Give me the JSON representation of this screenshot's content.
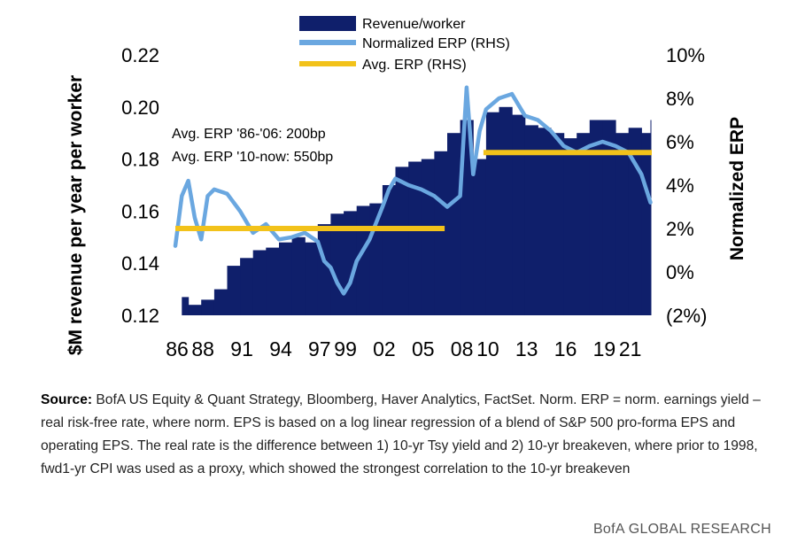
{
  "chart_data": {
    "type": "bar+line",
    "legend": [
      "Revenue/worker",
      "Normalized ERP (RHS)",
      "Avg. ERP (RHS)"
    ],
    "legend_placement": "top-center",
    "ylabel": "$M revenue per year per worker",
    "y2label": "Normalized ERP",
    "ylim": [
      0.12,
      0.22
    ],
    "y_ticks": [
      "0.12",
      "0.14",
      "0.16",
      "0.18",
      "0.20",
      "0.22"
    ],
    "y2lim": [
      -2,
      10
    ],
    "y2_ticks": [
      "(2%)",
      "0%",
      "2%",
      "4%",
      "6%",
      "8%",
      "10%"
    ],
    "xlim": [
      1986,
      2022.8
    ],
    "x_ticks": [
      "86",
      "88",
      "91",
      "94",
      "97",
      "99",
      "02",
      "05",
      "08",
      "10",
      "13",
      "16",
      "19",
      "21"
    ],
    "x_tick_years": [
      1986,
      1988,
      1991,
      1994,
      1997,
      1999,
      2002,
      2005,
      2008,
      2010,
      2013,
      2016,
      2019,
      2021
    ],
    "grid": false,
    "annotations": [
      "Avg. ERP '86-'06:  200bp",
      "Avg. ERP '10-now:  550bp"
    ],
    "series": [
      {
        "name": "Revenue/worker",
        "type": "bar",
        "axis": "left",
        "color": "#0f1f6b",
        "x": [
          1986.5,
          1987,
          1988,
          1989,
          1990,
          1991,
          1992,
          1993,
          1994,
          1995,
          1996,
          1997,
          1998,
          1999,
          2000,
          2001,
          2002,
          2003,
          2004,
          2005,
          2006,
          2007,
          2008,
          2009,
          2010,
          2011,
          2012,
          2013,
          2014,
          2015,
          2016,
          2017,
          2018,
          2019,
          2020,
          2021,
          2022,
          2022.7
        ],
        "values": [
          0.127,
          0.124,
          0.126,
          0.13,
          0.139,
          0.142,
          0.145,
          0.146,
          0.148,
          0.15,
          0.148,
          0.155,
          0.159,
          0.16,
          0.162,
          0.163,
          0.17,
          0.177,
          0.179,
          0.18,
          0.183,
          0.19,
          0.195,
          0.18,
          0.198,
          0.2,
          0.197,
          0.193,
          0.192,
          0.19,
          0.188,
          0.19,
          0.195,
          0.195,
          0.19,
          0.192,
          0.19,
          0.195
        ]
      },
      {
        "name": "Normalized ERP (RHS)",
        "type": "line",
        "axis": "right",
        "color": "#6aa7e0",
        "x": [
          1986,
          1986.5,
          1987,
          1987.5,
          1988,
          1988.5,
          1989,
          1990,
          1991,
          1992,
          1993,
          1994,
          1995,
          1996,
          1997,
          1997.5,
          1998,
          1998.5,
          1999,
          1999.5,
          2000,
          2001,
          2002,
          2002.5,
          2003,
          2004,
          2005,
          2006,
          2007,
          2008,
          2008.5,
          2009,
          2009.5,
          2010,
          2011,
          2012,
          2013,
          2014,
          2015,
          2016,
          2017,
          2018,
          2019,
          2020,
          2021,
          2022,
          2022.7
        ],
        "values": [
          1.2,
          3.5,
          4.2,
          2.5,
          1.5,
          3.5,
          3.8,
          3.6,
          2.8,
          1.8,
          2.2,
          1.5,
          1.6,
          1.8,
          1.4,
          0.5,
          0.2,
          -0.5,
          -1.0,
          -0.5,
          0.5,
          1.5,
          3.0,
          3.8,
          4.3,
          4.0,
          3.8,
          3.5,
          3.0,
          3.5,
          8.5,
          4.5,
          6.5,
          7.5,
          8.0,
          8.2,
          7.2,
          7.0,
          6.5,
          5.8,
          5.5,
          5.8,
          6.0,
          5.8,
          5.5,
          4.5,
          3.2
        ]
      },
      {
        "name": "Avg. ERP (RHS)",
        "type": "line",
        "axis": "right",
        "color": "#f2c21a",
        "segments": [
          {
            "x": [
              1986,
              2006.8
            ],
            "value": 2.0
          },
          {
            "x": [
              2009.8,
              2022.8
            ],
            "value": 5.5
          }
        ]
      }
    ]
  },
  "source": {
    "label": "Source:",
    "text": "  BofA US Equity & Quant Strategy, Bloomberg, Haver Analytics, FactSet. Norm. ERP = norm. earnings yield –real risk-free rate, where norm. EPS is based on a log linear regression of a blend of S&P 500 pro-forma EPS and operating EPS.  The real rate is the difference between 1) 10-yr Tsy yield and 2)  10-yr breakeven, where prior to 1998,  fwd1-yr CPI was used as a proxy, which showed  the strongest correlation to the 10-yr breakeven"
  },
  "brand": "BofA GLOBAL RESEARCH"
}
